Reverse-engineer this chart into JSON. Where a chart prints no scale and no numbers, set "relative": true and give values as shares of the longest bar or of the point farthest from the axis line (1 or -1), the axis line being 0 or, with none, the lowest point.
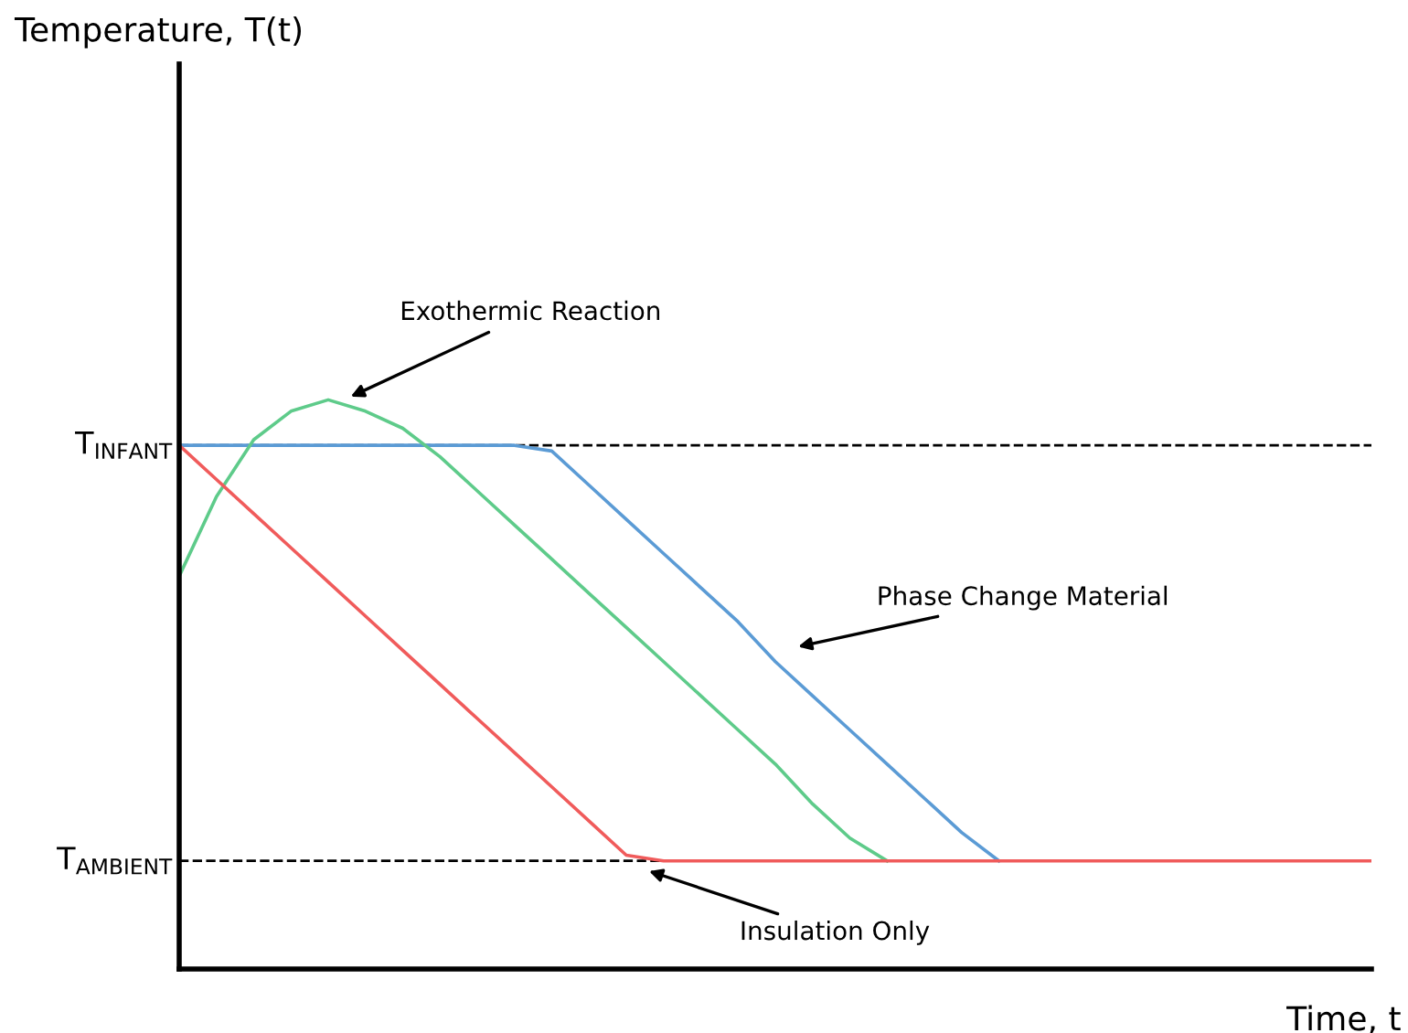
{
  "chart_data": {
    "type": "line",
    "xlabel": "Time, t",
    "relative": true,
    "legend": false,
    "marker": "none",
    "line_style": "solid",
    "categories": [
      null,
      null,
      null,
      null,
      null,
      null,
      null,
      null,
      null,
      null,
      null,
      null,
      null,
      null,
      null,
      null,
      null,
      null,
      null,
      null,
      null,
      null,
      null,
      null,
      null,
      null,
      null,
      null,
      null,
      null,
      null,
      null,
      null
    ],
    "series": [
      {
        "color": "#5b9bd5",
        "values": [
          0.92,
          0.92,
          0.92,
          0.92,
          0.92,
          0.92,
          0.92,
          0.92,
          0.92,
          0.92,
          0.91,
          0.85,
          0.79,
          0.73,
          0.67,
          0.61,
          0.54,
          0.48,
          0.42,
          0.36,
          0.3,
          0.24,
          0.19,
          null,
          null,
          null,
          null,
          null,
          null,
          null,
          null,
          null,
          null
        ]
      },
      {
        "color": "#5ecb8a",
        "values": [
          0.69,
          0.83,
          0.93,
          0.98,
          1.0,
          0.98,
          0.95,
          0.9,
          0.84,
          0.78,
          0.72,
          0.66,
          0.6,
          0.54,
          0.48,
          0.42,
          0.36,
          0.29,
          0.23,
          0.19,
          null,
          null,
          null,
          null,
          null,
          null,
          null,
          null,
          null,
          null,
          null,
          null,
          null
        ]
      },
      {
        "color": "#f05b5b",
        "values": [
          0.92,
          0.86,
          0.8,
          0.74,
          0.68,
          0.62,
          0.56,
          0.5,
          0.44,
          0.38,
          0.32,
          0.26,
          0.2,
          0.19,
          0.19,
          0.19,
          0.19,
          0.19,
          0.19,
          0.19,
          0.19,
          0.19,
          0.19,
          0.19,
          0.19,
          0.19,
          0.19,
          0.19,
          0.19,
          0.19,
          0.19,
          0.19,
          0.19
        ]
      }
    ],
    "ref_lines": [
      {
        "axis": "y",
        "value": 0.92,
        "label": "T$_{INFANT}$",
        "color": "#000000",
        "line_style": "dashed"
      },
      {
        "axis": "y",
        "value": 0.19,
        "label": "T$_{AMBIENT}$",
        "color": "#000000",
        "line_style": "dashed"
      }
    ],
    "annotations": [
      "Exothermic Reaction",
      "Phase Change Material",
      "Insulation Only",
      "Temperature, T(t)"
    ]
  }
}
